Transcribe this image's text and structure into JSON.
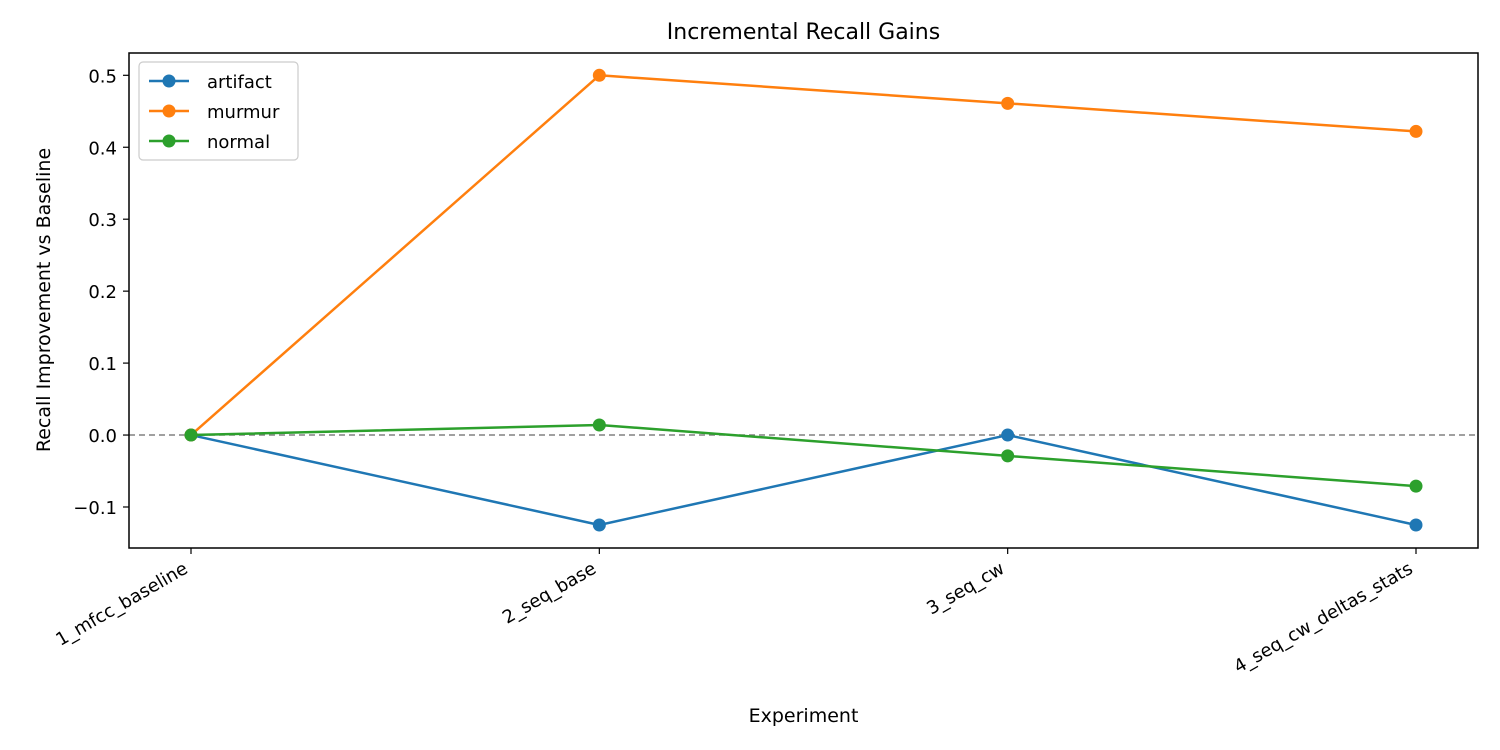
{
  "chart_data": {
    "type": "line",
    "title": "Incremental Recall Gains",
    "xlabel": "Experiment",
    "ylabel": "Recall Improvement vs Baseline",
    "categories": [
      "1_mfcc_baseline",
      "2_seq_base",
      "3_seq_cw",
      "4_seq_cw_deltas_stats"
    ],
    "ylim": [
      -0.157,
      0.531
    ],
    "yticks": [
      -0.1,
      0.0,
      0.1,
      0.2,
      0.3,
      0.4,
      0.5
    ],
    "ytick_labels": [
      "−0.1",
      "0.0",
      "0.1",
      "0.2",
      "0.3",
      "0.4",
      "0.5"
    ],
    "reference_line": {
      "y": 0.0,
      "style": "dashed",
      "color": "#808080"
    },
    "grid": false,
    "legend_position": "top-left",
    "series": [
      {
        "name": "artifact",
        "color": "#1f77b4",
        "values": [
          0.0,
          -0.125,
          0.0,
          -0.125
        ]
      },
      {
        "name": "murmur",
        "color": "#ff7f0e",
        "values": [
          0.0,
          0.5,
          0.461,
          0.422
        ]
      },
      {
        "name": "normal",
        "color": "#2ca02c",
        "values": [
          0.0,
          0.014,
          -0.029,
          -0.071
        ]
      }
    ]
  }
}
